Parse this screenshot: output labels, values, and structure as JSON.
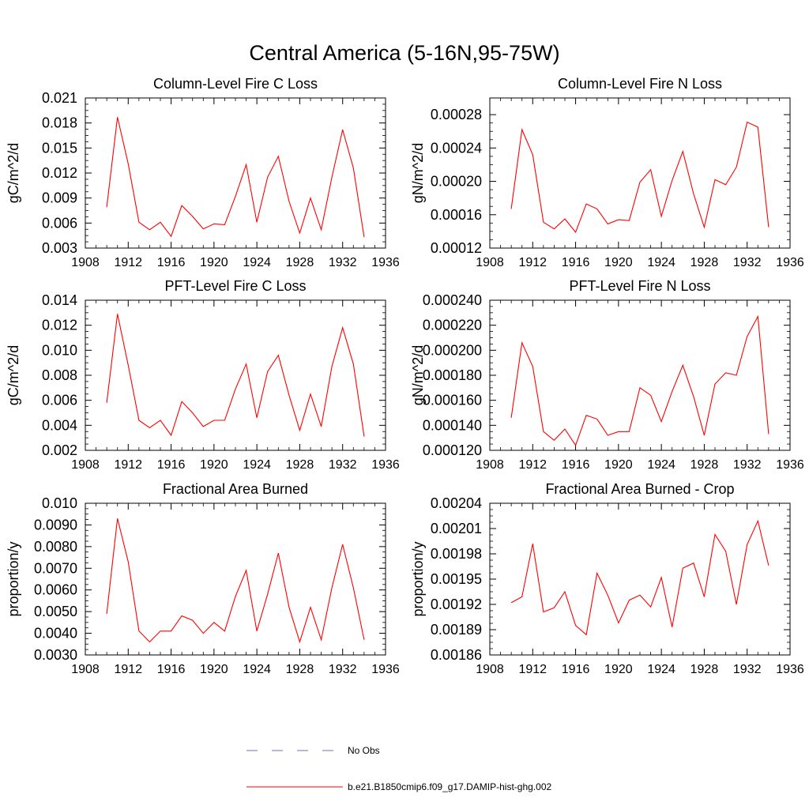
{
  "figure": {
    "title": "Central America (5-16N,95-75W)"
  },
  "legend": [
    {
      "label": "No Obs",
      "color": "#6b73b5",
      "style": "dashed"
    },
    {
      "label": "b.e21.B1850cmip6.f09_g17.DAMIP-hist-ghg.002",
      "color": "#ff0000",
      "style": "solid"
    }
  ],
  "chart_data": [
    {
      "type": "line",
      "title": "Column-Level Fire C Loss",
      "ylabel": "gC/m^2/d",
      "xlim": [
        1908,
        1936
      ],
      "ylim": [
        0.003,
        0.021
      ],
      "xticks": [
        1908,
        1912,
        1916,
        1920,
        1924,
        1928,
        1932,
        1936
      ],
      "xtick_labels": [
        "1908",
        "1912",
        "1916",
        "1920",
        "1924",
        "1928",
        "1932",
        "1936"
      ],
      "yticks": [
        0.003,
        0.006,
        0.009,
        0.012,
        0.015,
        0.018,
        0.021
      ],
      "ytick_labels": [
        "0.003",
        "0.006",
        "0.009",
        "0.012",
        "0.015",
        "0.018",
        "0.021"
      ],
      "x": [
        1910,
        1911,
        1912,
        1913,
        1914,
        1915,
        1916,
        1917,
        1918,
        1919,
        1920,
        1921,
        1922,
        1923,
        1924,
        1925,
        1926,
        1927,
        1928,
        1929,
        1930,
        1931,
        1932,
        1933,
        1934
      ],
      "series": [
        {
          "name": "b.e21.B1850cmip6.f09_g17.DAMIP-hist-ghg.002",
          "color": "#ff0000",
          "values": [
            0.0079,
            0.0187,
            0.0131,
            0.0061,
            0.0052,
            0.0061,
            0.0044,
            0.0081,
            0.0068,
            0.0053,
            0.0059,
            0.0058,
            0.0092,
            0.013,
            0.0061,
            0.0115,
            0.014,
            0.0086,
            0.0048,
            0.009,
            0.0052,
            0.0115,
            0.0172,
            0.0126,
            0.0043
          ]
        }
      ]
    },
    {
      "type": "line",
      "title": "Column-Level Fire N Loss",
      "ylabel": "gN/m^2/d",
      "xlim": [
        1908,
        1936
      ],
      "ylim": [
        0.00012,
        0.0003
      ],
      "xticks": [
        1908,
        1912,
        1916,
        1920,
        1924,
        1928,
        1932,
        1936
      ],
      "xtick_labels": [
        "1908",
        "1912",
        "1916",
        "1920",
        "1924",
        "1928",
        "1932",
        "1936"
      ],
      "yticks": [
        0.00012,
        0.00016,
        0.0002,
        0.00024,
        0.00028
      ],
      "ytick_labels": [
        "0.00012",
        "0.00016",
        "0.00020",
        "0.00024",
        "0.00028"
      ],
      "x": [
        1910,
        1911,
        1912,
        1913,
        1914,
        1915,
        1916,
        1917,
        1918,
        1919,
        1920,
        1921,
        1922,
        1923,
        1924,
        1925,
        1926,
        1927,
        1928,
        1929,
        1930,
        1931,
        1932,
        1933,
        1934
      ],
      "series": [
        {
          "name": "b.e21.B1850cmip6.f09_g17.DAMIP-hist-ghg.002",
          "color": "#ff0000",
          "values": [
            0.000167,
            0.000262,
            0.000232,
            0.000151,
            0.000143,
            0.000155,
            0.000139,
            0.000173,
            0.000167,
            0.000149,
            0.000154,
            0.000153,
            0.000199,
            0.000214,
            0.000158,
            0.000201,
            0.000236,
            0.000185,
            0.000145,
            0.000202,
            0.000196,
            0.000217,
            0.000271,
            0.000265,
            0.000145
          ]
        }
      ]
    },
    {
      "type": "line",
      "title": "PFT-Level Fire C Loss",
      "ylabel": "gC/m^2/d",
      "xlim": [
        1908,
        1936
      ],
      "ylim": [
        0.002,
        0.014
      ],
      "xticks": [
        1908,
        1912,
        1916,
        1920,
        1924,
        1928,
        1932,
        1936
      ],
      "xtick_labels": [
        "1908",
        "1912",
        "1916",
        "1920",
        "1924",
        "1928",
        "1932",
        "1936"
      ],
      "yticks": [
        0.002,
        0.004,
        0.006,
        0.008,
        0.01,
        0.012,
        0.014
      ],
      "ytick_labels": [
        "0.002",
        "0.004",
        "0.006",
        "0.008",
        "0.010",
        "0.012",
        "0.014"
      ],
      "x": [
        1910,
        1911,
        1912,
        1913,
        1914,
        1915,
        1916,
        1917,
        1918,
        1919,
        1920,
        1921,
        1922,
        1923,
        1924,
        1925,
        1926,
        1927,
        1928,
        1929,
        1930,
        1931,
        1932,
        1933,
        1934
      ],
      "series": [
        {
          "name": "b.e21.B1850cmip6.f09_g17.DAMIP-hist-ghg.002",
          "color": "#ff0000",
          "values": [
            0.0058,
            0.0129,
            0.0088,
            0.0044,
            0.0038,
            0.0044,
            0.0032,
            0.0059,
            0.005,
            0.0039,
            0.0044,
            0.0044,
            0.0069,
            0.0089,
            0.0046,
            0.0083,
            0.0096,
            0.0064,
            0.0036,
            0.0065,
            0.0039,
            0.0087,
            0.0118,
            0.0089,
            0.0031
          ]
        }
      ]
    },
    {
      "type": "line",
      "title": "PFT-Level Fire N Loss",
      "ylabel": "gN/m^2/d",
      "xlim": [
        1908,
        1936
      ],
      "ylim": [
        0.00012,
        0.00024
      ],
      "xticks": [
        1908,
        1912,
        1916,
        1920,
        1924,
        1928,
        1932,
        1936
      ],
      "xtick_labels": [
        "1908",
        "1912",
        "1916",
        "1920",
        "1924",
        "1928",
        "1932",
        "1936"
      ],
      "yticks": [
        0.00012,
        0.00014,
        0.00016,
        0.00018,
        0.0002,
        0.00022,
        0.00024
      ],
      "ytick_labels": [
        "0.000120",
        "0.000140",
        "0.000160",
        "0.000180",
        "0.000200",
        "0.000220",
        "0.000240"
      ],
      "x": [
        1910,
        1911,
        1912,
        1913,
        1914,
        1915,
        1916,
        1917,
        1918,
        1919,
        1920,
        1921,
        1922,
        1923,
        1924,
        1925,
        1926,
        1927,
        1928,
        1929,
        1930,
        1931,
        1932,
        1933,
        1934
      ],
      "series": [
        {
          "name": "b.e21.B1850cmip6.f09_g17.DAMIP-hist-ghg.002",
          "color": "#ff0000",
          "values": [
            0.000146,
            0.000206,
            0.000187,
            0.000135,
            0.000128,
            0.000137,
            0.000124,
            0.000148,
            0.000145,
            0.000132,
            0.000135,
            0.000135,
            0.00017,
            0.000164,
            0.000143,
            0.000167,
            0.000188,
            0.000163,
            0.000132,
            0.000173,
            0.000182,
            0.00018,
            0.000211,
            0.000227,
            0.000133
          ]
        }
      ]
    },
    {
      "type": "line",
      "title": "Fractional Area Burned",
      "ylabel": "proportion/y",
      "xlim": [
        1908,
        1936
      ],
      "ylim": [
        0.003,
        0.01
      ],
      "xticks": [
        1908,
        1912,
        1916,
        1920,
        1924,
        1928,
        1932,
        1936
      ],
      "xtick_labels": [
        "1908",
        "1912",
        "1916",
        "1920",
        "1924",
        "1928",
        "1932",
        "1936"
      ],
      "yticks": [
        0.003,
        0.004,
        0.005,
        0.006,
        0.007,
        0.008,
        0.009,
        0.01
      ],
      "ytick_labels": [
        "0.0030",
        "0.0040",
        "0.0050",
        "0.0060",
        "0.0070",
        "0.0080",
        "0.0090",
        "0.010"
      ],
      "x": [
        1910,
        1911,
        1912,
        1913,
        1914,
        1915,
        1916,
        1917,
        1918,
        1919,
        1920,
        1921,
        1922,
        1923,
        1924,
        1925,
        1926,
        1927,
        1928,
        1929,
        1930,
        1931,
        1932,
        1933,
        1934
      ],
      "series": [
        {
          "name": "b.e21.B1850cmip6.f09_g17.DAMIP-hist-ghg.002",
          "color": "#ff0000",
          "values": [
            0.0049,
            0.0093,
            0.0073,
            0.0041,
            0.0036,
            0.0041,
            0.0041,
            0.0048,
            0.0046,
            0.004,
            0.0045,
            0.0041,
            0.0057,
            0.0069,
            0.0041,
            0.0058,
            0.0077,
            0.0052,
            0.0036,
            0.0052,
            0.0037,
            0.0061,
            0.0081,
            0.0061,
            0.0037
          ]
        }
      ]
    },
    {
      "type": "line",
      "title": "Fractional Area Burned - Crop",
      "ylabel": "proportion/y",
      "xlim": [
        1908,
        1936
      ],
      "ylim": [
        0.00186,
        0.00204
      ],
      "xticks": [
        1908,
        1912,
        1916,
        1920,
        1924,
        1928,
        1932,
        1936
      ],
      "xtick_labels": [
        "1908",
        "1912",
        "1916",
        "1920",
        "1924",
        "1928",
        "1932",
        "1936"
      ],
      "yticks": [
        0.00186,
        0.00189,
        0.00192,
        0.00195,
        0.00198,
        0.00201,
        0.00204
      ],
      "ytick_labels": [
        "0.00186",
        "0.00189",
        "0.00192",
        "0.00195",
        "0.00198",
        "0.00201",
        "0.00204"
      ],
      "x": [
        1910,
        1911,
        1912,
        1913,
        1914,
        1915,
        1916,
        1917,
        1918,
        1919,
        1920,
        1921,
        1922,
        1923,
        1924,
        1925,
        1926,
        1927,
        1928,
        1929,
        1930,
        1931,
        1932,
        1933,
        1934
      ],
      "series": [
        {
          "name": "b.e21.B1850cmip6.f09_g17.DAMIP-hist-ghg.002",
          "color": "#ff0000",
          "values": [
            0.001922,
            0.001929,
            0.001992,
            0.001911,
            0.001916,
            0.001935,
            0.001895,
            0.001884,
            0.001957,
            0.001931,
            0.001898,
            0.001925,
            0.001931,
            0.001917,
            0.001952,
            0.001893,
            0.001963,
            0.001969,
            0.001929,
            0.002003,
            0.001983,
            0.00192,
            0.001991,
            0.002019,
            0.001966
          ]
        }
      ]
    }
  ]
}
